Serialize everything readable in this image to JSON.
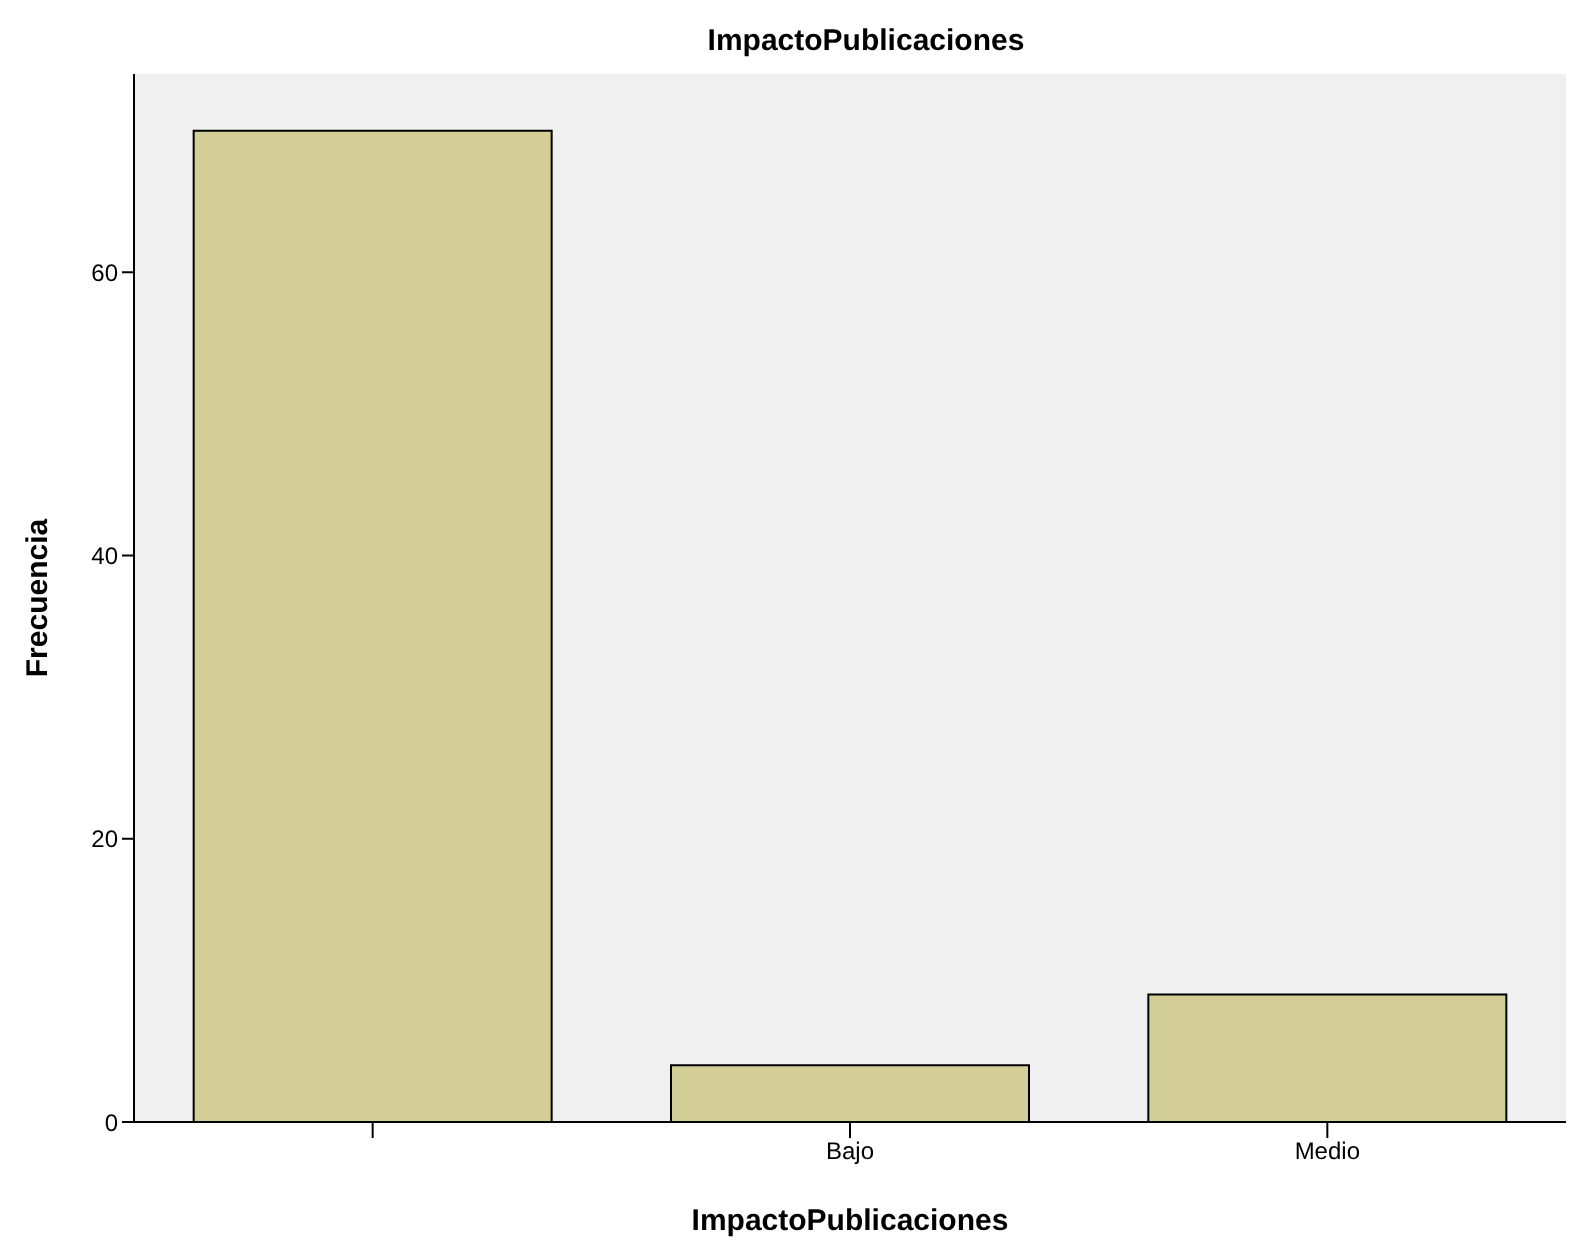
{
  "chart_data": {
    "type": "bar",
    "title": "ImpactoPublicaciones",
    "xlabel": "ImpactoPublicaciones",
    "ylabel": "Frecuencia",
    "categories": [
      null,
      "Bajo",
      "Medio"
    ],
    "values": [
      70,
      4,
      9
    ],
    "color": "#d3ce97",
    "ylim": [
      0,
      74
    ],
    "yticks": [
      0,
      20,
      40,
      60
    ],
    "grid": false
  }
}
